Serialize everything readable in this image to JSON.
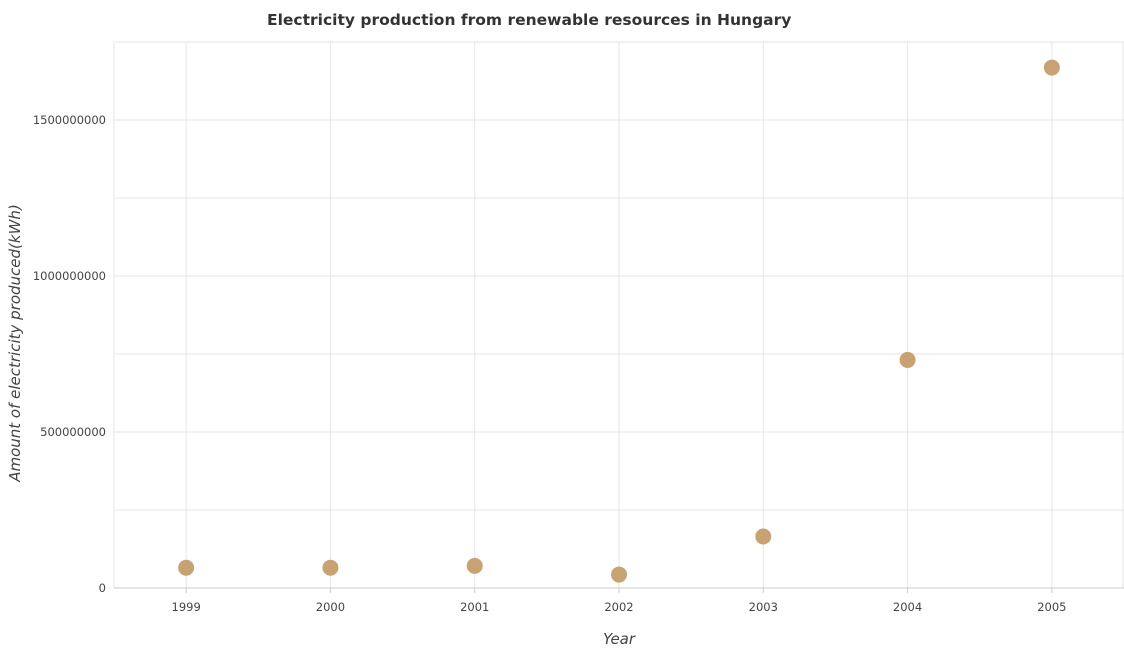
{
  "chart_data": {
    "type": "scatter",
    "title": "Electricity production from renewable resources in Hungary",
    "xlabel": "Year",
    "ylabel": "Amount of electricity produced(kWh)",
    "categories": [
      "1999",
      "2000",
      "2001",
      "2002",
      "2003",
      "2004",
      "2005"
    ],
    "values": [
      65000000,
      65000000,
      71000000,
      43000000,
      165000000,
      731000000,
      1668000000
    ],
    "ylim": [
      0,
      1750000000
    ],
    "yticks": [
      0,
      500000000,
      1000000000,
      1500000000
    ],
    "ytick_labels": [
      "0",
      "500000000",
      "1000000000",
      "1500000000"
    ],
    "grid": true,
    "legend": "none",
    "marker_color": "#c9a273"
  }
}
